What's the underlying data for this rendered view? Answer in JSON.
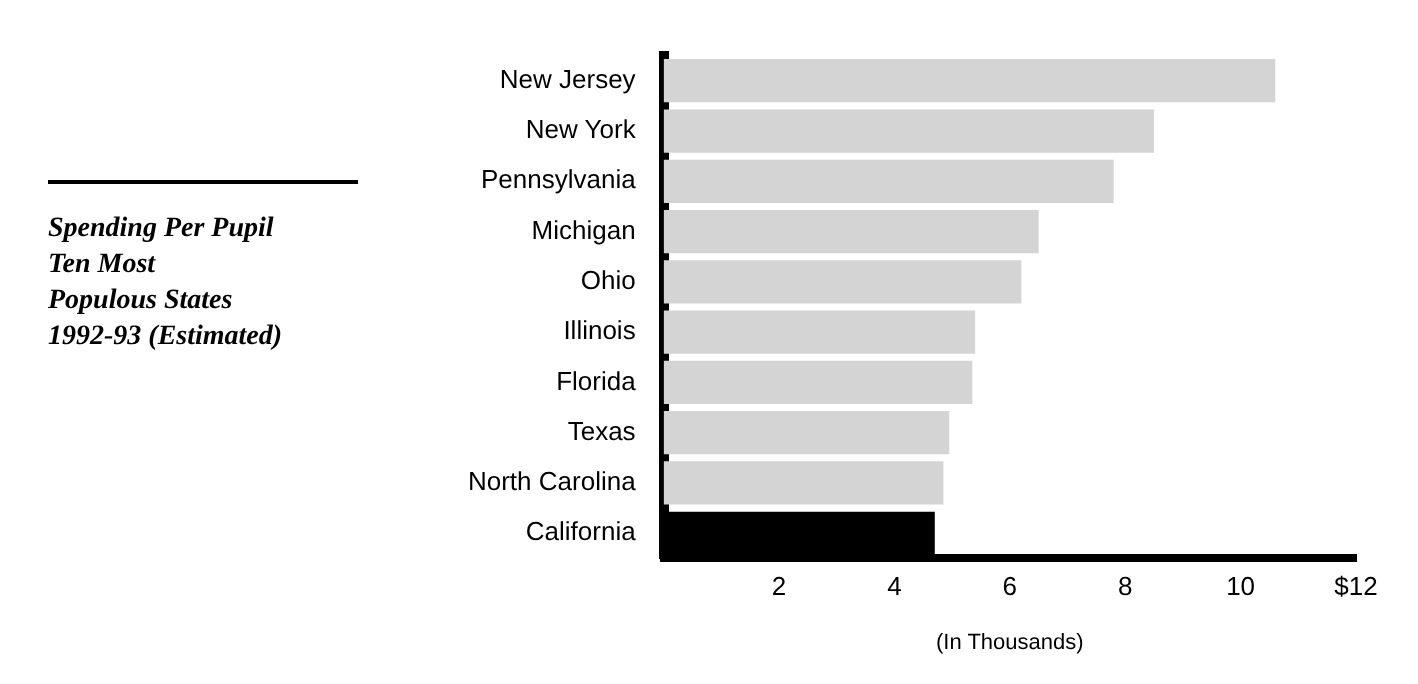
{
  "chart_data": {
    "type": "bar",
    "orientation": "horizontal",
    "title": "Spending Per Pupil\nTen Most\nPopulous States\n1992-93 (Estimated)",
    "xlabel": "(In Thousands)",
    "categories": [
      "New Jersey",
      "New York",
      "Pennsylvania",
      "Michigan",
      "Ohio",
      "Illinois",
      "Florida",
      "Texas",
      "North Carolina",
      "California"
    ],
    "values": [
      10.6,
      8.5,
      7.8,
      6.5,
      6.2,
      5.4,
      5.35,
      4.95,
      4.85,
      4.7
    ],
    "colors": [
      "#d4d4d4",
      "#d4d4d4",
      "#d4d4d4",
      "#d4d4d4",
      "#d4d4d4",
      "#d4d4d4",
      "#d4d4d4",
      "#d4d4d4",
      "#d4d4d4",
      "#000000"
    ],
    "xlim": [
      0,
      12
    ],
    "xticks": [
      2,
      4,
      6,
      8,
      10,
      {
        "value": 12,
        "label": "$12"
      }
    ],
    "grid": false,
    "legend": false
  }
}
